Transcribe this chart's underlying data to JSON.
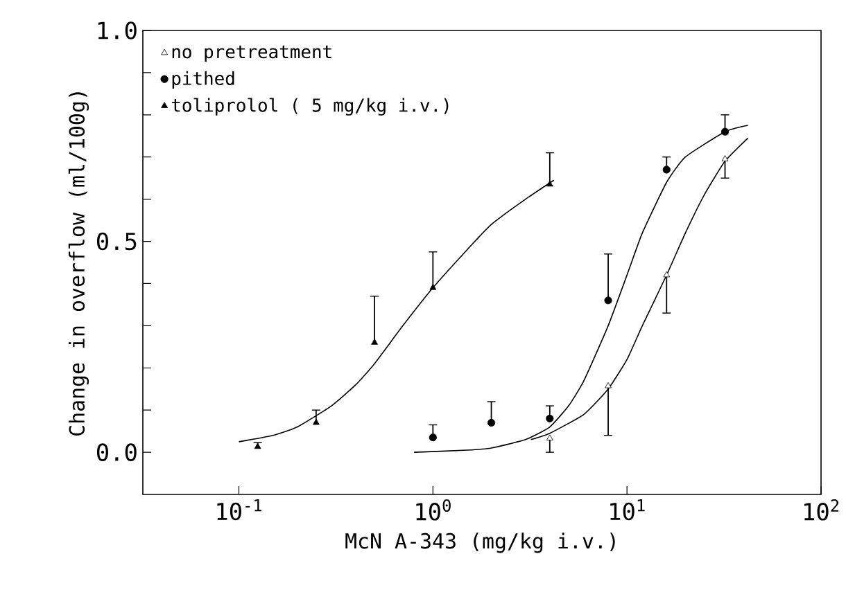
{
  "chart_data": {
    "type": "scatter",
    "xlabel": "McN A-343 (mg/kg i.v.)",
    "ylabel": "Change in overflow (ml/100g)",
    "log": "x",
    "xlim": [
      0.032,
      100
    ],
    "ylim": [
      -0.1,
      1.0
    ],
    "xticks": [
      {
        "value": 0.1,
        "label": "10$^{-1}$"
      },
      {
        "value": 1,
        "label": "10$^{0}$"
      },
      {
        "value": 10,
        "label": "10$^{1}$"
      },
      {
        "value": 100,
        "label": "10$^{2}$"
      }
    ],
    "yticks": [
      {
        "value": 0,
        "label": "0.0"
      },
      {
        "value": 0.1,
        "label": null
      },
      {
        "value": 0.2,
        "label": null
      },
      {
        "value": 0.3,
        "label": null
      },
      {
        "value": 0.4,
        "label": null
      },
      {
        "value": 0.5,
        "label": "0.5"
      },
      {
        "value": 0.6,
        "label": null
      },
      {
        "value": 0.7,
        "label": null
      },
      {
        "value": 0.8,
        "label": null
      },
      {
        "value": 0.9,
        "label": null
      },
      {
        "value": 1.0,
        "label": "1.0"
      }
    ],
    "legend": "top left",
    "grid": false,
    "series": [
      {
        "name": "no pretreatment",
        "marker": "triangle",
        "color": "#ffffff",
        "x": [
          4,
          8,
          16,
          32
        ],
        "values": [
          0.033,
          0.157,
          0.42,
          0.695
        ],
        "errors": [
          [
            0.0,
            0.033
          ],
          [
            0.04,
            0.157
          ],
          [
            0.33,
            0.42
          ],
          [
            0.65,
            0.695
          ]
        ]
      },
      {
        "name": "pithed",
        "marker": "circle",
        "color": "#000000",
        "x": [
          1,
          2,
          4,
          8,
          16,
          32
        ],
        "values": [
          0.035,
          0.07,
          0.08,
          0.36,
          0.67,
          0.76
        ],
        "errors": [
          [
            0.035,
            0.065
          ],
          [
            0.07,
            0.12
          ],
          [
            0.08,
            0.11
          ],
          [
            0.36,
            0.47
          ],
          [
            0.67,
            0.7
          ],
          [
            0.76,
            0.8
          ]
        ]
      },
      {
        "name": "toliprolol ( 5 mg/kg i.v.)",
        "marker": "triangle",
        "color": "#000000",
        "x": [
          0.125,
          0.25,
          0.5,
          1,
          4
        ],
        "values": [
          0.013,
          0.07,
          0.26,
          0.39,
          0.635
        ],
        "errors": [
          [
            0.013,
            0.023
          ],
          [
            0.07,
            0.1
          ],
          [
            0.26,
            0.37
          ],
          [
            0.39,
            0.475
          ],
          [
            0.635,
            0.71
          ]
        ]
      },
      {
        "type": "line",
        "color": "#000000",
        "x": [
          3.2,
          4,
          6,
          8,
          10,
          12,
          16,
          20,
          25,
          32,
          42
        ],
        "values": [
          0.03,
          0.045,
          0.09,
          0.15,
          0.22,
          0.3,
          0.42,
          0.52,
          0.61,
          0.69,
          0.745
        ]
      },
      {
        "type": "line",
        "color": "#000000",
        "x": [
          0.8,
          1.5,
          2,
          3,
          4,
          5,
          6,
          8,
          10,
          12,
          16,
          20,
          32,
          42
        ],
        "values": [
          0.0,
          0.005,
          0.01,
          0.03,
          0.06,
          0.11,
          0.17,
          0.3,
          0.42,
          0.52,
          0.64,
          0.7,
          0.76,
          0.775
        ]
      },
      {
        "type": "line",
        "color": "#000000",
        "x": [
          0.1,
          0.15,
          0.2,
          0.3,
          0.4,
          0.5,
          0.7,
          1,
          1.5,
          2,
          3,
          4.2
        ],
        "values": [
          0.025,
          0.04,
          0.06,
          0.11,
          0.16,
          0.21,
          0.3,
          0.39,
          0.48,
          0.54,
          0.6,
          0.645
        ]
      }
    ]
  }
}
